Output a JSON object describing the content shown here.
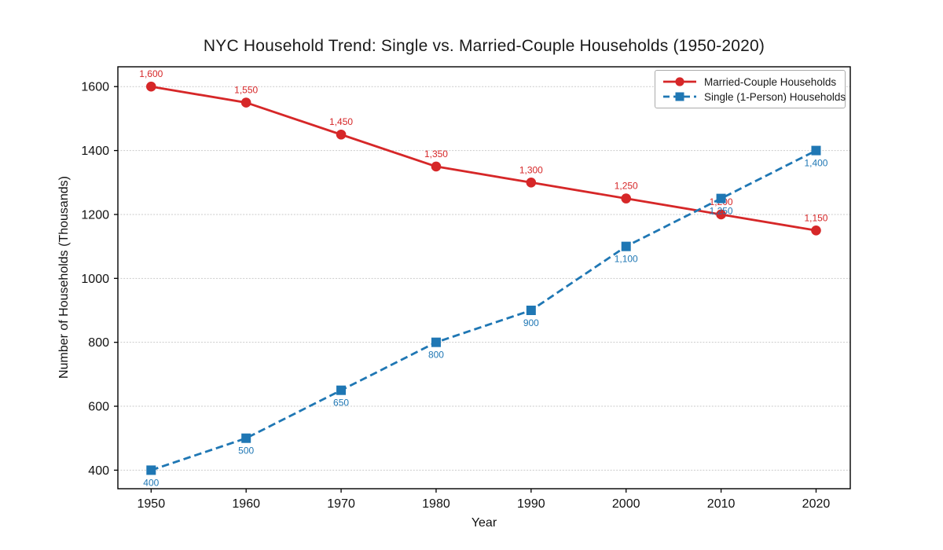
{
  "chart_data": {
    "type": "line",
    "title": "NYC Household Trend: Single vs. Married-Couple Households (1950-2020)",
    "xlabel": "Year",
    "ylabel": "Number of Households (Thousands)",
    "x": [
      1950,
      1960,
      1970,
      1980,
      1990,
      2000,
      2010,
      2020
    ],
    "x_tick_labels": [
      "1950",
      "1960",
      "1970",
      "1980",
      "1990",
      "2000",
      "2010",
      "2020"
    ],
    "y_ticks": [
      400,
      600,
      800,
      1000,
      1200,
      1400,
      1600
    ],
    "y_tick_labels": [
      "400",
      "600",
      "800",
      "1000",
      "1200",
      "1400",
      "1600"
    ],
    "xlim": [
      1946.5,
      2023.6
    ],
    "ylim": [
      342,
      1662
    ],
    "grid": "horizontal-dotted",
    "grid_color": "#c9c9c9",
    "legend_position": "upper-right",
    "series": [
      {
        "name": "Married-Couple Households",
        "color": "#d62728",
        "line_style": "solid",
        "marker": "circle",
        "label_position": "above",
        "values": [
          1600,
          1550,
          1450,
          1350,
          1300,
          1250,
          1200,
          1150
        ],
        "labels": [
          "1,600",
          "1,550",
          "1,450",
          "1,350",
          "1,300",
          "1,250",
          "1,200",
          "1,150"
        ]
      },
      {
        "name": "Single (1-Person) Households",
        "color": "#1f77b4",
        "line_style": "dashed",
        "marker": "square",
        "label_position": "below",
        "values": [
          400,
          500,
          650,
          800,
          900,
          1100,
          1250,
          1400
        ],
        "labels": [
          "400",
          "500",
          "650",
          "800",
          "900",
          "1,100",
          "1,250",
          "1,400"
        ]
      }
    ]
  }
}
